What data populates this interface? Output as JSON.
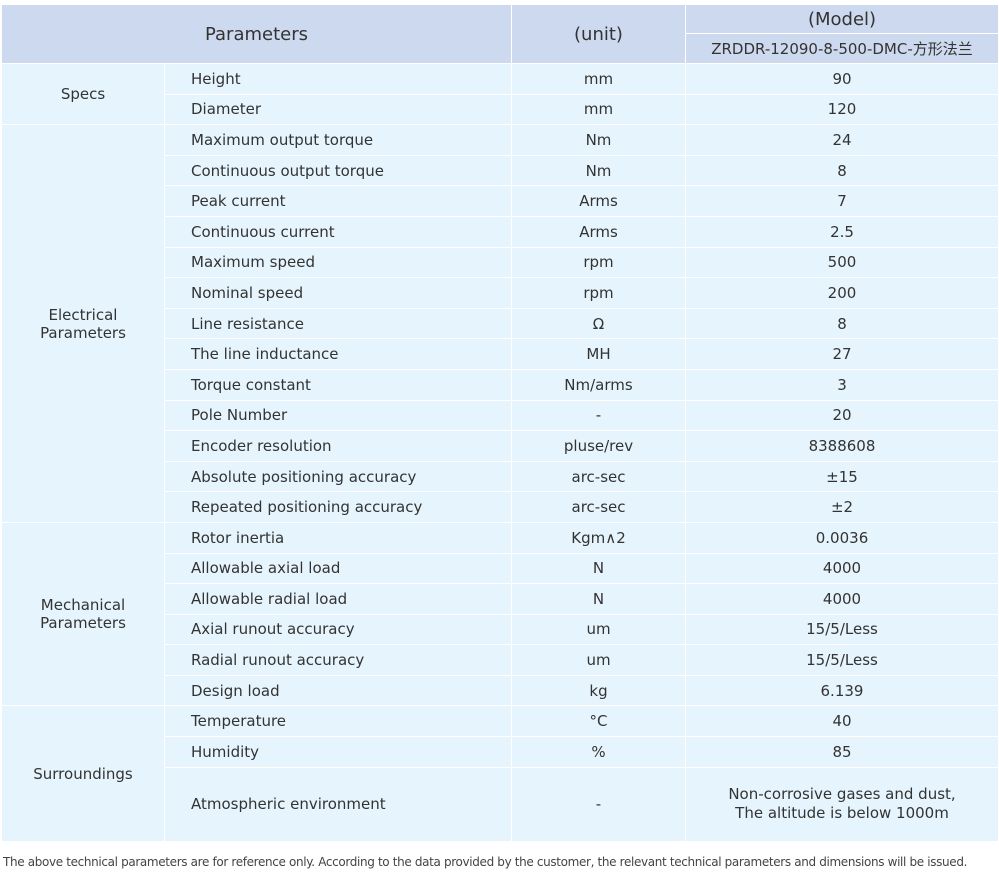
{
  "header": {
    "parameters": "Parameters",
    "unit": "(unit)",
    "model": "(Model)",
    "model_name": "ZRDDR-12090-8-500-DMC-方形法兰"
  },
  "groups": [
    {
      "label": "Specs",
      "rows": [
        {
          "name": "Height",
          "unit": "mm",
          "value": "90"
        },
        {
          "name": "Diameter",
          "unit": "mm",
          "value": "120"
        }
      ]
    },
    {
      "label": "Electrical Parameters",
      "rows": [
        {
          "name": "Maximum output torque",
          "unit": "Nm",
          "value": "24"
        },
        {
          "name": "Continuous output torque",
          "unit": "Nm",
          "value": "8"
        },
        {
          "name": "Peak current",
          "unit": "Arms",
          "value": "7"
        },
        {
          "name": "Continuous current",
          "unit": "Arms",
          "value": "2.5"
        },
        {
          "name": "Maximum speed",
          "unit": "rpm",
          "value": "500"
        },
        {
          "name": "Nominal speed",
          "unit": "rpm",
          "value": "200"
        },
        {
          "name": "Line resistance",
          "unit": "Ω",
          "value": "8"
        },
        {
          "name": "The line inductance",
          "unit": "MH",
          "value": "27"
        },
        {
          "name": "Torque constant",
          "unit": "Nm/arms",
          "value": "3"
        },
        {
          "name": "Pole Number",
          "unit": "-",
          "value": "20"
        },
        {
          "name": "Encoder resolution",
          "unit": "pluse/rev",
          "value": "8388608"
        },
        {
          "name": "Absolute positioning accuracy",
          "unit": "arc-sec",
          "value": "±15"
        },
        {
          "name": "Repeated positioning accuracy",
          "unit": "arc-sec",
          "value": "±2"
        }
      ]
    },
    {
      "label": "Mechanical Parameters",
      "rows": [
        {
          "name": "Rotor inertia",
          "unit": "Kgm∧2",
          "value": "0.0036"
        },
        {
          "name": "Allowable axial load",
          "unit": "N",
          "value": "4000"
        },
        {
          "name": "Allowable radial load",
          "unit": "N",
          "value": "4000"
        },
        {
          "name": "Axial runout accuracy",
          "unit": "um",
          "value": "15/5/Less"
        },
        {
          "name": "Radial runout accuracy",
          "unit": "um",
          "value": "15/5/Less"
        },
        {
          "name": "Design load",
          "unit": "kg",
          "value": "6.139"
        }
      ]
    },
    {
      "label": "Surroundings",
      "rows": [
        {
          "name": "Temperature",
          "unit": "°C",
          "value": "40"
        },
        {
          "name": "Humidity",
          "unit": "%",
          "value": "85"
        },
        {
          "name": "Atmospheric environment",
          "unit": "-",
          "value": "Non-corrosive gases and dust,\nThe altitude is below 1000m"
        }
      ]
    }
  ],
  "footer": "The above technical parameters are for reference only. According to the data provided by the customer, the relevant technical parameters and dimensions will be issued.",
  "colors": {
    "header_bg": "#cdd9ee",
    "body_bg": "#e6f5fd",
    "border": "#ffffff"
  }
}
